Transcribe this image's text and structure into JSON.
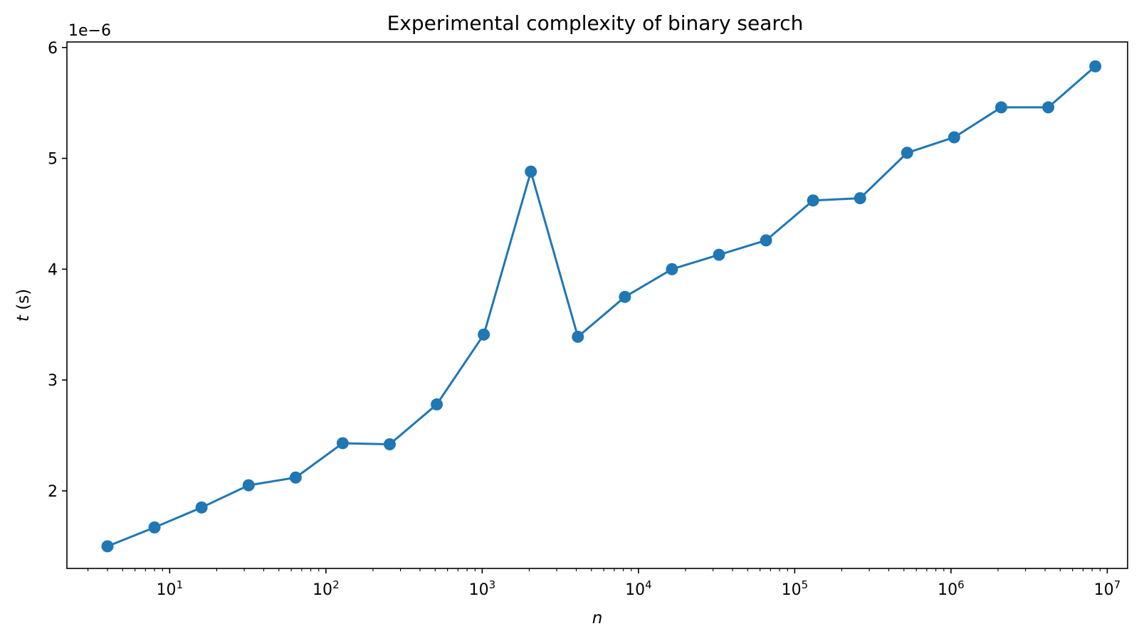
{
  "chart_data": {
    "type": "line",
    "title": "Experimental complexity of binary search",
    "xlabel": "n",
    "ylabel_var": "t",
    "ylabel_unit": " (s)",
    "y_offset_text": "1e−6",
    "x_scale": "log",
    "xlim": [
      2.2,
      13500000
    ],
    "ylim": [
      1.3,
      6.05
    ],
    "y_ticks": [
      2,
      3,
      4,
      5,
      6
    ],
    "x_major_ticks": [
      {
        "base": "10",
        "exp": "1",
        "value": 10
      },
      {
        "base": "10",
        "exp": "2",
        "value": 100
      },
      {
        "base": "10",
        "exp": "3",
        "value": 1000
      },
      {
        "base": "10",
        "exp": "4",
        "value": 10000
      },
      {
        "base": "10",
        "exp": "5",
        "value": 100000
      },
      {
        "base": "10",
        "exp": "6",
        "value": 1000000
      },
      {
        "base": "10",
        "exp": "7",
        "value": 10000000
      }
    ],
    "grid": false,
    "line_color": "#1f77b4",
    "marker": "circle",
    "series": [
      {
        "x": [
          4,
          8,
          16,
          32,
          64,
          128,
          256,
          512,
          1024,
          2048,
          4096,
          8192,
          16384,
          32768,
          65536,
          131072,
          262144,
          524288,
          1048576,
          2097152,
          4194304,
          8388608
        ],
        "y": [
          1.5,
          1.67,
          1.85,
          2.05,
          2.12,
          2.43,
          2.42,
          2.78,
          3.41,
          4.88,
          3.39,
          3.75,
          4.0,
          4.13,
          4.26,
          4.62,
          4.64,
          5.05,
          5.19,
          5.46,
          5.46,
          5.83
        ]
      }
    ]
  }
}
